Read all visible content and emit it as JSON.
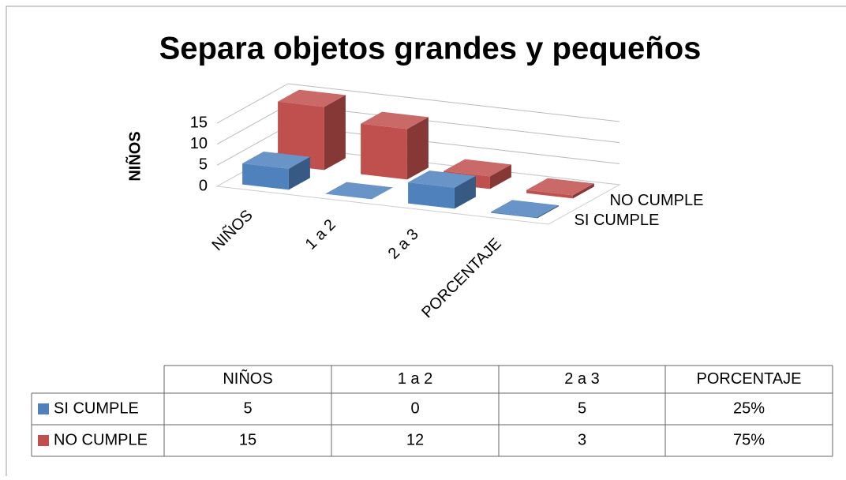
{
  "chart_data": {
    "type": "bar3d",
    "title": "Separa objetos grandes y pequeños",
    "y_label": "NIÑOS",
    "categories": [
      "NIÑOS",
      "1 a 2",
      "2 a 3",
      "PORCENTAJE"
    ],
    "series": [
      {
        "name": "SI CUMPLE",
        "color": "#4f81bd",
        "values": [
          5,
          0,
          5,
          0.25
        ],
        "value_labels": [
          "5",
          "0",
          "5",
          "25%"
        ]
      },
      {
        "name": "NO CUMPLE",
        "color": "#c0504d",
        "values": [
          15,
          12,
          3,
          0.75
        ],
        "value_labels": [
          "15",
          "12",
          "3",
          "75%"
        ]
      }
    ],
    "ylim": [
      0,
      15
    ],
    "yticks": [
      0,
      5,
      10,
      15
    ],
    "grid": true,
    "data_table": true
  }
}
